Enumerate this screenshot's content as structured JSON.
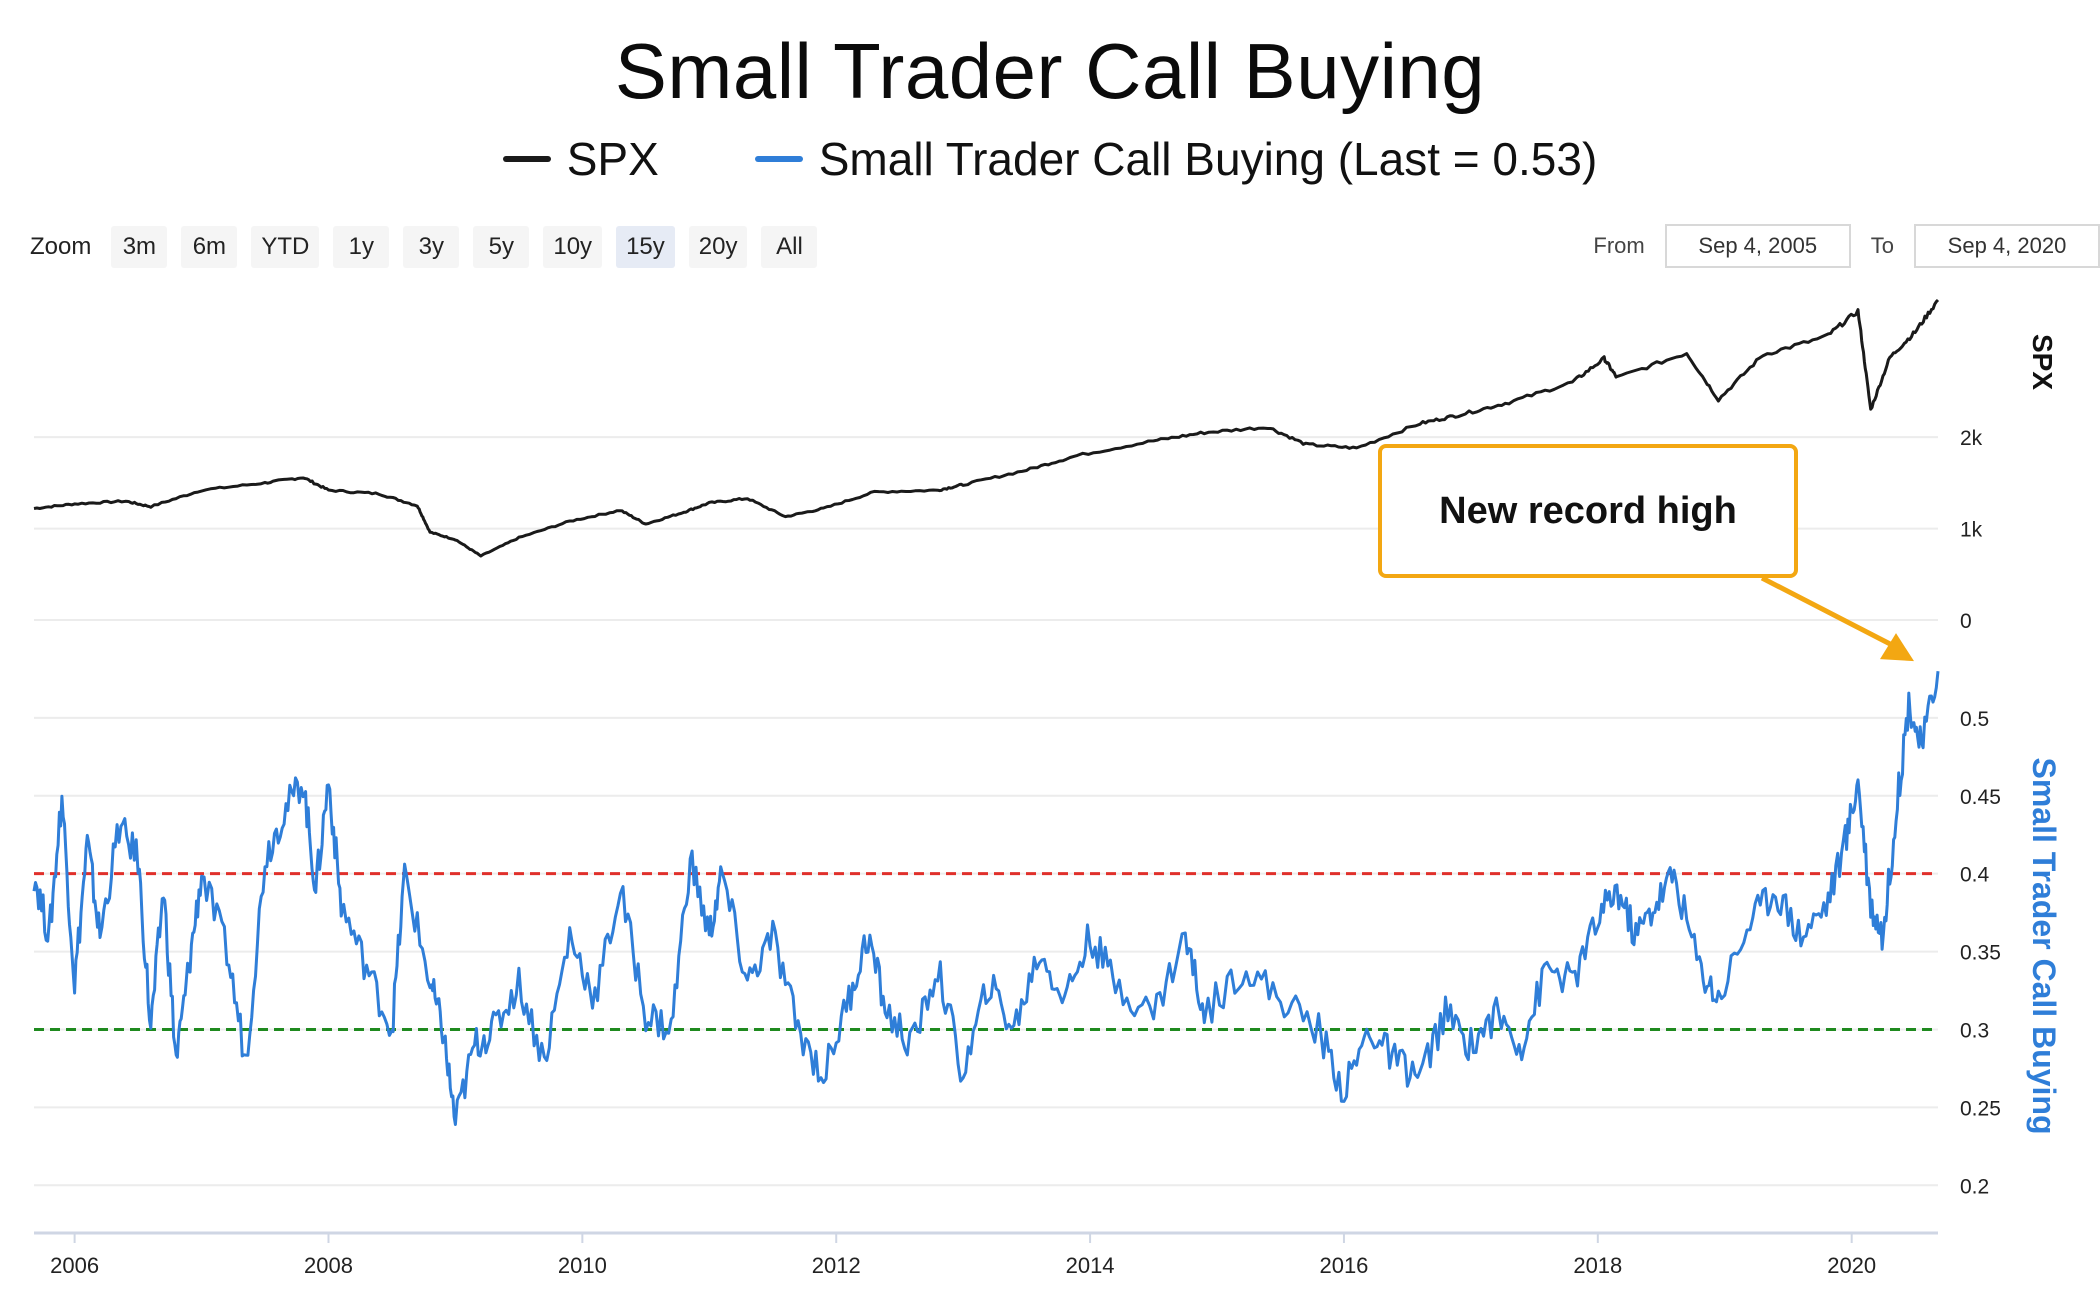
{
  "title": "Small Trader Call Buying",
  "legend": [
    {
      "label": "SPX",
      "color": "#1a1a1a"
    },
    {
      "label": "Small Trader Call Buying (Last = 0.53)",
      "color": "#2f7ed8"
    }
  ],
  "zoom": {
    "label": "Zoom",
    "buttons": [
      "3m",
      "6m",
      "YTD",
      "1y",
      "3y",
      "5y",
      "10y",
      "15y",
      "20y",
      "All"
    ],
    "selected": "15y"
  },
  "range": {
    "from_label": "From",
    "from_value": "Sep 4, 2005",
    "to_label": "To",
    "to_value": "Sep 4, 2020"
  },
  "annotation": {
    "text": "New record high",
    "color": "#f3a712"
  },
  "chart_data": {
    "type": "line",
    "x_range": [
      2005.68,
      2020.68
    ],
    "x_ticks": [
      "2006",
      "2008",
      "2010",
      "2012",
      "2014",
      "2016",
      "2018",
      "2020"
    ],
    "panes": [
      {
        "name": "SPX",
        "axis_title": "SPX",
        "ylim": [
          0,
          3500
        ],
        "y_ticks": [
          "0",
          "1k",
          "2k"
        ],
        "y_tick_values": [
          0,
          1000,
          2000
        ],
        "series": [
          {
            "name": "SPX",
            "color": "#1a1a1a",
            "points": [
              [
                2005.68,
                1220
              ],
              [
                2006.0,
                1270
              ],
              [
                2006.4,
                1300
              ],
              [
                2006.6,
                1240
              ],
              [
                2007.0,
                1420
              ],
              [
                2007.5,
                1500
              ],
              [
                2007.8,
                1560
              ],
              [
                2008.0,
                1420
              ],
              [
                2008.4,
                1380
              ],
              [
                2008.7,
                1250
              ],
              [
                2008.8,
                960
              ],
              [
                2009.0,
                880
              ],
              [
                2009.2,
                700
              ],
              [
                2009.5,
                900
              ],
              [
                2009.9,
                1080
              ],
              [
                2010.3,
                1200
              ],
              [
                2010.5,
                1050
              ],
              [
                2010.8,
                1180
              ],
              [
                2011.0,
                1280
              ],
              [
                2011.3,
                1330
              ],
              [
                2011.6,
                1130
              ],
              [
                2011.9,
                1220
              ],
              [
                2012.3,
                1400
              ],
              [
                2012.8,
                1420
              ],
              [
                2013.0,
                1480
              ],
              [
                2013.5,
                1640
              ],
              [
                2013.9,
                1800
              ],
              [
                2014.5,
                1960
              ],
              [
                2014.9,
                2050
              ],
              [
                2015.4,
                2110
              ],
              [
                2015.7,
                1920
              ],
              [
                2016.1,
                1880
              ],
              [
                2016.6,
                2150
              ],
              [
                2016.9,
                2240
              ],
              [
                2017.3,
                2380
              ],
              [
                2017.8,
                2600
              ],
              [
                2018.05,
                2860
              ],
              [
                2018.15,
                2650
              ],
              [
                2018.7,
                2920
              ],
              [
                2018.95,
                2410
              ],
              [
                2019.3,
                2900
              ],
              [
                2019.8,
                3100
              ],
              [
                2020.05,
                3380
              ],
              [
                2020.15,
                2300
              ],
              [
                2020.3,
                2870
              ],
              [
                2020.5,
                3150
              ],
              [
                2020.68,
                3500
              ]
            ]
          }
        ]
      },
      {
        "name": "Small Trader Call Buying",
        "axis_title": "Small Trader Call Buying",
        "ylim": [
          0.17,
          0.55
        ],
        "y_ticks": [
          "0.2",
          "0.25",
          "0.3",
          "0.35",
          "0.4",
          "0.45",
          "0.5"
        ],
        "y_tick_values": [
          0.2,
          0.25,
          0.3,
          0.35,
          0.4,
          0.45,
          0.5
        ],
        "reference_lines": [
          {
            "value": 0.4,
            "color": "#e0302b",
            "style": "dashed"
          },
          {
            "value": 0.3,
            "color": "#1f8a1f",
            "style": "dashed"
          }
        ],
        "series": [
          {
            "name": "Small Trader Call Buying",
            "color": "#2f7ed8",
            "points": [
              [
                2005.68,
                0.4
              ],
              [
                2005.8,
                0.36
              ],
              [
                2005.9,
                0.45
              ],
              [
                2006.0,
                0.33
              ],
              [
                2006.1,
                0.42
              ],
              [
                2006.2,
                0.36
              ],
              [
                2006.35,
                0.43
              ],
              [
                2006.5,
                0.41
              ],
              [
                2006.6,
                0.3
              ],
              [
                2006.7,
                0.39
              ],
              [
                2006.8,
                0.28
              ],
              [
                2006.9,
                0.34
              ],
              [
                2007.0,
                0.4
              ],
              [
                2007.2,
                0.35
              ],
              [
                2007.35,
                0.28
              ],
              [
                2007.5,
                0.41
              ],
              [
                2007.65,
                0.44
              ],
              [
                2007.8,
                0.46
              ],
              [
                2007.9,
                0.39
              ],
              [
                2008.0,
                0.46
              ],
              [
                2008.1,
                0.38
              ],
              [
                2008.3,
                0.34
              ],
              [
                2008.5,
                0.3
              ],
              [
                2008.6,
                0.4
              ],
              [
                2008.8,
                0.33
              ],
              [
                2008.9,
                0.3
              ],
              [
                2009.0,
                0.24
              ],
              [
                2009.15,
                0.29
              ],
              [
                2009.3,
                0.3
              ],
              [
                2009.5,
                0.33
              ],
              [
                2009.7,
                0.28
              ],
              [
                2009.9,
                0.36
              ],
              [
                2010.1,
                0.32
              ],
              [
                2010.3,
                0.39
              ],
              [
                2010.5,
                0.31
              ],
              [
                2010.7,
                0.3
              ],
              [
                2010.85,
                0.41
              ],
              [
                2011.0,
                0.36
              ],
              [
                2011.1,
                0.4
              ],
              [
                2011.3,
                0.33
              ],
              [
                2011.5,
                0.36
              ],
              [
                2011.7,
                0.3
              ],
              [
                2011.9,
                0.27
              ],
              [
                2012.1,
                0.32
              ],
              [
                2012.25,
                0.36
              ],
              [
                2012.4,
                0.31
              ],
              [
                2012.6,
                0.29
              ],
              [
                2012.8,
                0.34
              ],
              [
                2013.0,
                0.27
              ],
              [
                2013.2,
                0.33
              ],
              [
                2013.4,
                0.3
              ],
              [
                2013.6,
                0.35
              ],
              [
                2013.8,
                0.32
              ],
              [
                2014.0,
                0.36
              ],
              [
                2014.2,
                0.33
              ],
              [
                2014.5,
                0.31
              ],
              [
                2014.75,
                0.36
              ],
              [
                2014.9,
                0.31
              ],
              [
                2015.2,
                0.34
              ],
              [
                2015.5,
                0.32
              ],
              [
                2015.8,
                0.3
              ],
              [
                2016.0,
                0.26
              ],
              [
                2016.2,
                0.3
              ],
              [
                2016.4,
                0.28
              ],
              [
                2016.6,
                0.27
              ],
              [
                2016.8,
                0.31
              ],
              [
                2017.0,
                0.29
              ],
              [
                2017.2,
                0.31
              ],
              [
                2017.4,
                0.29
              ],
              [
                2017.6,
                0.34
              ],
              [
                2017.8,
                0.33
              ],
              [
                2018.0,
                0.37
              ],
              [
                2018.15,
                0.39
              ],
              [
                2018.3,
                0.36
              ],
              [
                2018.45,
                0.38
              ],
              [
                2018.6,
                0.4
              ],
              [
                2018.8,
                0.34
              ],
              [
                2018.95,
                0.32
              ],
              [
                2019.2,
                0.37
              ],
              [
                2019.4,
                0.39
              ],
              [
                2019.6,
                0.36
              ],
              [
                2019.8,
                0.38
              ],
              [
                2019.95,
                0.42
              ],
              [
                2020.05,
                0.46
              ],
              [
                2020.15,
                0.38
              ],
              [
                2020.25,
                0.36
              ],
              [
                2020.35,
                0.44
              ],
              [
                2020.45,
                0.51
              ],
              [
                2020.55,
                0.48
              ],
              [
                2020.68,
                0.53
              ]
            ]
          }
        ]
      }
    ]
  }
}
